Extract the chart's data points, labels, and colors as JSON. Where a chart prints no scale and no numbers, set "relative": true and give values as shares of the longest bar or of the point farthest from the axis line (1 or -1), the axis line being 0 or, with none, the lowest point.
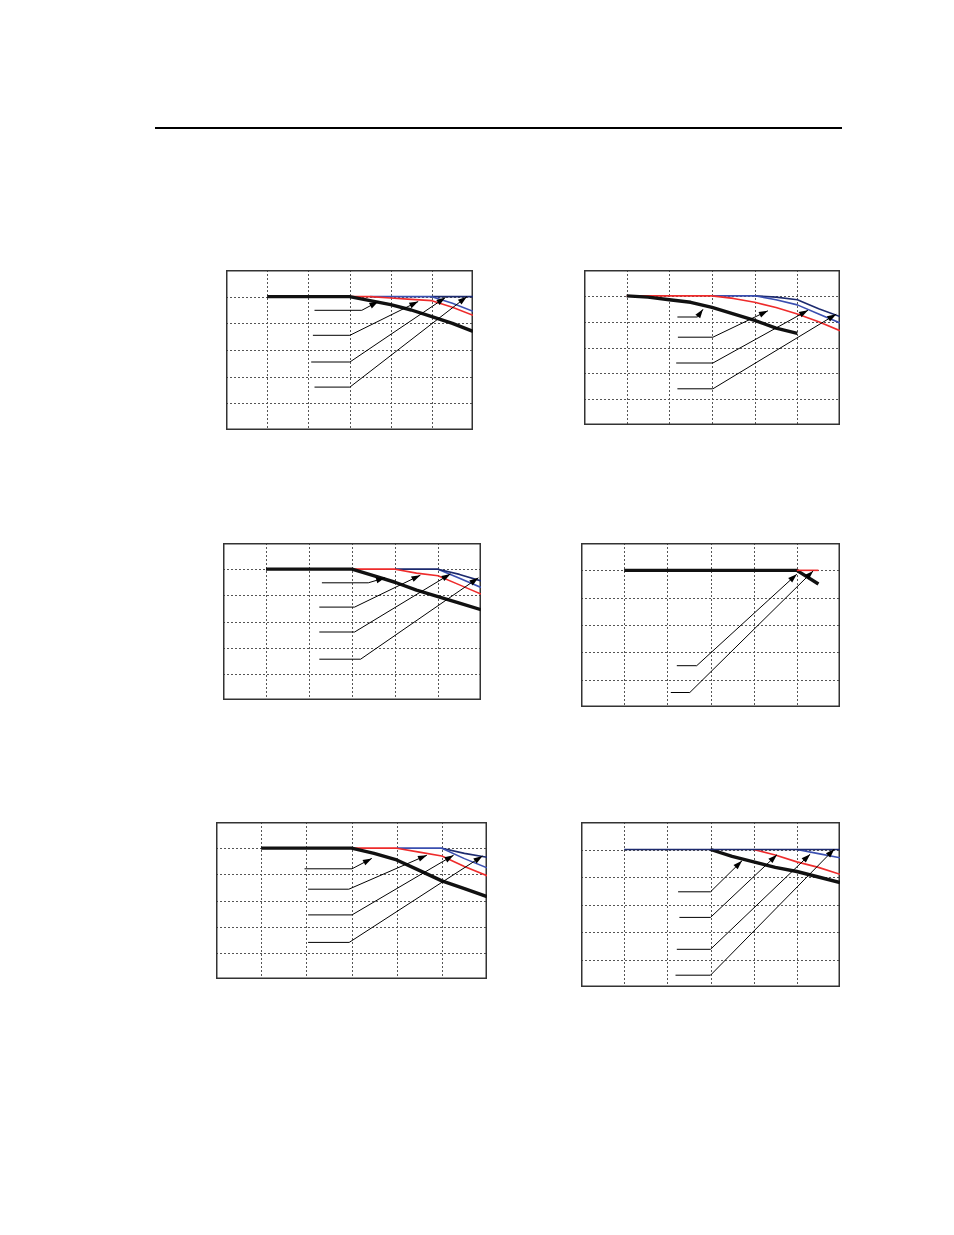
{
  "chart_data": [
    {
      "type": "line",
      "relative": true,
      "grid": true,
      "categories": [
        null,
        null,
        null,
        null,
        null,
        null,
        null,
        null,
        null,
        null,
        null,
        null,
        null
      ],
      "series": [
        {
          "color": "#111111",
          "values": [
            null,
            null,
            1,
            1,
            1,
            1,
            1,
            0.97,
            0.94,
            0.9,
            0.85,
            0.8,
            0.74
          ]
        },
        {
          "color": "#ee2b2b",
          "values": [
            null,
            null,
            null,
            null,
            null,
            null,
            1,
            1,
            0.99,
            0.98,
            0.97,
            0.92,
            0.86
          ]
        },
        {
          "color": "#3a4fb0",
          "values": [
            null,
            null,
            null,
            null,
            null,
            null,
            null,
            1,
            1,
            1,
            1,
            0.95,
            0.89
          ]
        },
        {
          "color": "#1c2a6e",
          "values": [
            null,
            null,
            null,
            null,
            null,
            null,
            null,
            null,
            null,
            null,
            1,
            1,
            1
          ]
        }
      ]
    },
    {
      "type": "line",
      "relative": true,
      "grid": true,
      "categories": [
        null,
        null,
        null,
        null,
        null,
        null,
        null,
        null,
        null,
        null,
        null,
        null,
        null
      ],
      "series": [
        {
          "color": "#111111",
          "values": [
            null,
            null,
            1,
            0.99,
            0.97,
            0.95,
            0.91,
            0.86,
            0.81,
            0.75,
            0.71,
            null,
            null
          ]
        },
        {
          "color": "#ee2b2b",
          "values": [
            null,
            null,
            1,
            1,
            1,
            1,
            1,
            0.98,
            0.95,
            0.91,
            0.86,
            0.8,
            0.73
          ]
        },
        {
          "color": "#3a4fb0",
          "values": [
            null,
            null,
            null,
            null,
            null,
            null,
            1,
            1,
            1,
            0.97,
            0.93,
            0.86,
            0.79
          ]
        },
        {
          "color": "#1c2a6e",
          "values": [
            null,
            null,
            null,
            null,
            null,
            null,
            null,
            null,
            1,
            0.99,
            0.97,
            0.9,
            0.84
          ]
        }
      ]
    },
    {
      "type": "line",
      "relative": true,
      "grid": true,
      "categories": [
        null,
        null,
        null,
        null,
        null,
        null,
        null,
        null,
        null,
        null,
        null,
        null,
        null
      ],
      "series": [
        {
          "color": "#111111",
          "values": [
            null,
            null,
            1,
            1,
            1,
            1,
            1,
            0.95,
            0.9,
            0.84,
            0.79,
            0.74,
            0.69
          ]
        },
        {
          "color": "#ee2b2b",
          "values": [
            null,
            null,
            null,
            null,
            null,
            null,
            1,
            1,
            1,
            0.97,
            0.95,
            0.88,
            0.81
          ]
        },
        {
          "color": "#1c2a6e",
          "values": [
            null,
            null,
            null,
            null,
            null,
            null,
            null,
            null,
            1,
            1,
            1,
            0.96,
            0.91
          ]
        },
        {
          "color": "#3a4fb0",
          "values": [
            null,
            null,
            null,
            null,
            null,
            null,
            null,
            null,
            null,
            null,
            1,
            0.93,
            0.86
          ]
        }
      ]
    },
    {
      "type": "line",
      "relative": true,
      "grid": true,
      "categories": [
        null,
        null,
        null,
        null,
        null,
        null,
        null,
        null,
        null,
        null,
        null,
        null,
        null
      ],
      "series": [
        {
          "color": "#ee2b2b",
          "values": [
            null,
            null,
            null,
            null,
            null,
            null,
            null,
            null,
            null,
            null,
            1,
            1,
            null
          ]
        },
        {
          "color": "#111111",
          "values": [
            null,
            null,
            1,
            1,
            1,
            1,
            1,
            1,
            1,
            1,
            1,
            0.9,
            null
          ]
        }
      ]
    },
    {
      "type": "line",
      "relative": true,
      "grid": true,
      "categories": [
        null,
        null,
        null,
        null,
        null,
        null,
        null,
        null,
        null,
        null,
        null,
        null,
        null
      ],
      "series": [
        {
          "color": "#111111",
          "values": [
            null,
            null,
            1,
            1,
            1,
            1,
            1,
            0.96,
            0.91,
            0.83,
            0.75,
            0.69,
            0.63
          ]
        },
        {
          "color": "#ee2b2b",
          "values": [
            null,
            null,
            null,
            null,
            null,
            null,
            1,
            1,
            1,
            0.97,
            0.94,
            0.86,
            0.79
          ]
        },
        {
          "color": "#3a4fb0",
          "values": [
            null,
            null,
            null,
            null,
            null,
            null,
            null,
            null,
            1,
            1,
            1,
            0.92,
            0.85
          ]
        },
        {
          "color": "#1c2a6e",
          "values": [
            null,
            null,
            null,
            null,
            null,
            null,
            null,
            null,
            null,
            null,
            1,
            0.96,
            0.93
          ]
        }
      ]
    },
    {
      "type": "line",
      "relative": true,
      "grid": true,
      "categories": [
        null,
        null,
        null,
        null,
        null,
        null,
        null,
        null,
        null,
        null,
        null,
        null,
        null
      ],
      "series": [
        {
          "color": "#1c2a6e",
          "values": [
            null,
            null,
            1,
            1,
            1,
            1,
            1,
            1,
            1,
            1,
            1,
            1,
            1
          ]
        },
        {
          "color": "#111111",
          "values": [
            null,
            null,
            null,
            null,
            null,
            null,
            1,
            0.95,
            0.91,
            0.87,
            0.84,
            0.8,
            0.76
          ]
        },
        {
          "color": "#ee2b2b",
          "values": [
            null,
            null,
            null,
            null,
            null,
            null,
            null,
            null,
            1,
            0.96,
            0.91,
            0.87,
            0.82
          ]
        },
        {
          "color": "#3a4fb0",
          "values": [
            null,
            null,
            null,
            null,
            null,
            null,
            null,
            null,
            null,
            null,
            1,
            0.97,
            0.94
          ]
        }
      ]
    }
  ]
}
